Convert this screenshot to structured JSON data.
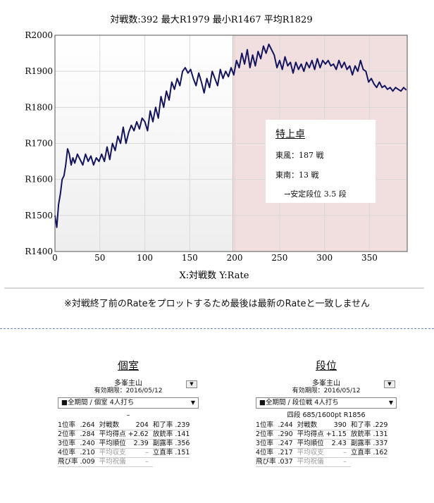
{
  "chart_data": {
    "type": "line",
    "title": "対戦数:392  最大R1979  最小R1467  平均R1829",
    "xlabel": "X:対戦数 Y:Rate",
    "ylabel": "",
    "xlim": [
      0,
      392
    ],
    "ylim": [
      1400,
      2000
    ],
    "xticks": [
      "0",
      "50",
      "100",
      "150",
      "200",
      "250",
      "300",
      "350"
    ],
    "xtick_values": [
      0,
      50,
      100,
      150,
      200,
      250,
      300,
      350
    ],
    "yticks": [
      "R1400",
      "R1500",
      "R1600",
      "R1700",
      "R1800",
      "R1900",
      "R2000"
    ],
    "ytick_values": [
      1400,
      1500,
      1600,
      1700,
      1800,
      1900,
      2000
    ],
    "grid": true,
    "highlight_region": {
      "x_start": 198,
      "x_end": 392,
      "color": "#f1dfdf"
    },
    "series": [
      {
        "color": "#14145e",
        "x": [
          0,
          2,
          4,
          6,
          8,
          10,
          12,
          14,
          16,
          18,
          20,
          22,
          25,
          28,
          31,
          34,
          37,
          40,
          43,
          46,
          49,
          52,
          55,
          58,
          61,
          64,
          67,
          70,
          73,
          76,
          79,
          82,
          85,
          88,
          91,
          94,
          97,
          100,
          103,
          106,
          109,
          112,
          115,
          118,
          121,
          124,
          127,
          130,
          133,
          136,
          139,
          142,
          145,
          148,
          151,
          154,
          157,
          160,
          163,
          166,
          169,
          172,
          175,
          178,
          181,
          184,
          187,
          190,
          193,
          196,
          199,
          202,
          205,
          208,
          211,
          214,
          217,
          220,
          223,
          226,
          229,
          232,
          235,
          238,
          241,
          244,
          247,
          250,
          253,
          256,
          259,
          262,
          265,
          268,
          271,
          274,
          277,
          280,
          283,
          286,
          289,
          292,
          295,
          298,
          301,
          304,
          307,
          310,
          313,
          316,
          319,
          322,
          325,
          328,
          331,
          334,
          337,
          340,
          343,
          346,
          349,
          352,
          355,
          358,
          361,
          364,
          367,
          370,
          373,
          376,
          379,
          382,
          385,
          388,
          391
        ],
        "values": [
          1500,
          1467,
          1530,
          1560,
          1600,
          1610,
          1640,
          1685,
          1670,
          1640,
          1660,
          1645,
          1670,
          1655,
          1640,
          1670,
          1650,
          1665,
          1640,
          1660,
          1650,
          1670,
          1650,
          1690,
          1655,
          1700,
          1680,
          1720,
          1700,
          1745,
          1700,
          1730,
          1750,
          1735,
          1760,
          1740,
          1770,
          1760,
          1735,
          1790,
          1760,
          1800,
          1770,
          1830,
          1800,
          1845,
          1820,
          1870,
          1850,
          1880,
          1860,
          1900,
          1910,
          1895,
          1905,
          1880,
          1860,
          1895,
          1870,
          1840,
          1880,
          1855,
          1900,
          1880,
          1860,
          1905,
          1880,
          1900,
          1885,
          1910,
          1890,
          1930,
          1910,
          1950,
          1920,
          1960,
          1910,
          1945,
          1915,
          1955,
          1935,
          1970,
          1950,
          1975,
          1960,
          1945,
          1910,
          1930,
          1905,
          1940,
          1915,
          1925,
          1895,
          1925,
          1905,
          1920,
          1900,
          1925,
          1910,
          1930,
          1905,
          1935,
          1910,
          1930,
          1920,
          1930,
          1915,
          1920,
          1905,
          1930,
          1910,
          1925,
          1905,
          1915,
          1890,
          1915,
          1900,
          1930,
          1905,
          1900,
          1870,
          1880,
          1865,
          1855,
          1870,
          1855,
          1860,
          1850,
          1855,
          1845,
          1855,
          1850,
          1845,
          1855,
          1848
        ]
      }
    ],
    "annotation": {
      "title": "特上卓",
      "line1": "東風：187 戦",
      "line2": "東南：13 戦",
      "line3": "→安定段位 3.5 段"
    }
  },
  "note": "※対戦終了前のRateをプロットするため最後は最新のRateと一致しません",
  "panels": {
    "left": {
      "title": "個室",
      "player_name": "多峯主山",
      "validity": "有効期限：2016/05/12",
      "dropdown_icon": "▼",
      "selector": "■全期間 / 個室 4人打ち",
      "selector_arrow": "▼",
      "subline": "–",
      "rows": [
        {
          "l1": "1位率",
          "v1": ".264",
          "l2": "対戦数",
          "v2": "204",
          "l3": "和了率",
          "v3": ".239"
        },
        {
          "l1": "2位率",
          "v1": ".284",
          "l2": "平均得点",
          "v2": "+2.62",
          "l3": "放銃率",
          "v3": ".141"
        },
        {
          "l1": "3位率",
          "v1": ".240",
          "l2": "平均順位",
          "v2": "2.39",
          "l3": "副露率",
          "v3": ".356"
        },
        {
          "l1": "4位率",
          "v1": ".210",
          "l2": "平均収支",
          "v2": "–",
          "l3": "立直率",
          "v3": ".151"
        },
        {
          "l1": "飛び率",
          "v1": ".009",
          "l2": "平均祝儀",
          "v2": "–",
          "l3": "",
          "v3": ""
        }
      ]
    },
    "right": {
      "title": "段位",
      "player_name": "多峯主山",
      "validity": "有効期限：2016/05/12",
      "dropdown_icon": "▼",
      "selector": "■全期間 / 段位戦 4人打ち",
      "selector_arrow": "▼",
      "subline": "四段 685/1600pt R1856",
      "rows": [
        {
          "l1": "1位率",
          "v1": ".244",
          "l2": "対戦数",
          "v2": "390",
          "l3": "和了率",
          "v3": ".229"
        },
        {
          "l1": "2位率",
          "v1": ".290",
          "l2": "平均得点",
          "v2": "+1.15",
          "l3": "放銃率",
          "v3": ".131"
        },
        {
          "l1": "3位率",
          "v1": ".247",
          "l2": "平均順位",
          "v2": "2.43",
          "l3": "副露率",
          "v3": ".337"
        },
        {
          "l1": "4位率",
          "v1": ".217",
          "l2": "平均収支",
          "v2": "–",
          "l3": "立直率",
          "v3": ".162"
        },
        {
          "l1": "飛び率",
          "v1": ".037",
          "l2": "平均祝儀",
          "v2": "–",
          "l3": "",
          "v3": ""
        }
      ]
    }
  }
}
